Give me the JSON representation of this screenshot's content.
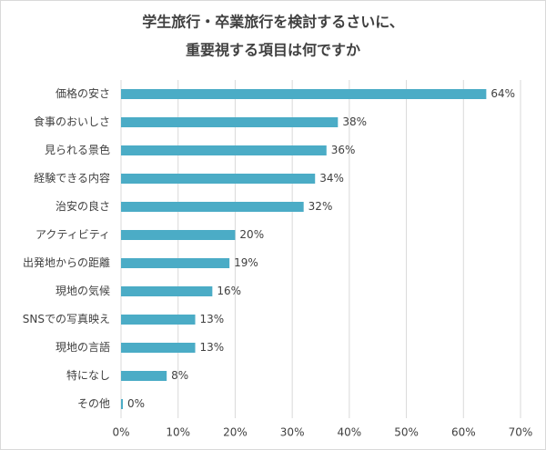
{
  "chart_data": {
    "type": "bar",
    "orientation": "horizontal",
    "title": [
      "学生旅行・卒業旅行を検討するさいに、",
      "重要視する項目は何ですか"
    ],
    "categories": [
      "価格の安さ",
      "食事のおいしさ",
      "見られる景色",
      "経験できる内容",
      "治安の良さ",
      "アクティビティ",
      "出発地からの距離",
      "現地の気候",
      "SNSでの写真映え",
      "現地の言語",
      "特になし",
      "その他"
    ],
    "values": [
      64,
      38,
      36,
      34,
      32,
      20,
      19,
      16,
      13,
      13,
      8,
      0
    ],
    "value_labels": [
      "64%",
      "38%",
      "36%",
      "34%",
      "32%",
      "20%",
      "19%",
      "16%",
      "13%",
      "13%",
      "8%",
      "0%"
    ],
    "color": "#4bacc6",
    "xlim": [
      0,
      70
    ],
    "xticks": [
      {
        "value": 0,
        "label": "0%"
      },
      {
        "value": 10,
        "label": "10%"
      },
      {
        "value": 20,
        "label": "20%"
      },
      {
        "value": 30,
        "label": "30%"
      },
      {
        "value": 40,
        "label": "40%"
      },
      {
        "value": 50,
        "label": "50%"
      },
      {
        "value": 60,
        "label": "60%"
      },
      {
        "value": 70,
        "label": "70%"
      }
    ],
    "grid": true
  }
}
